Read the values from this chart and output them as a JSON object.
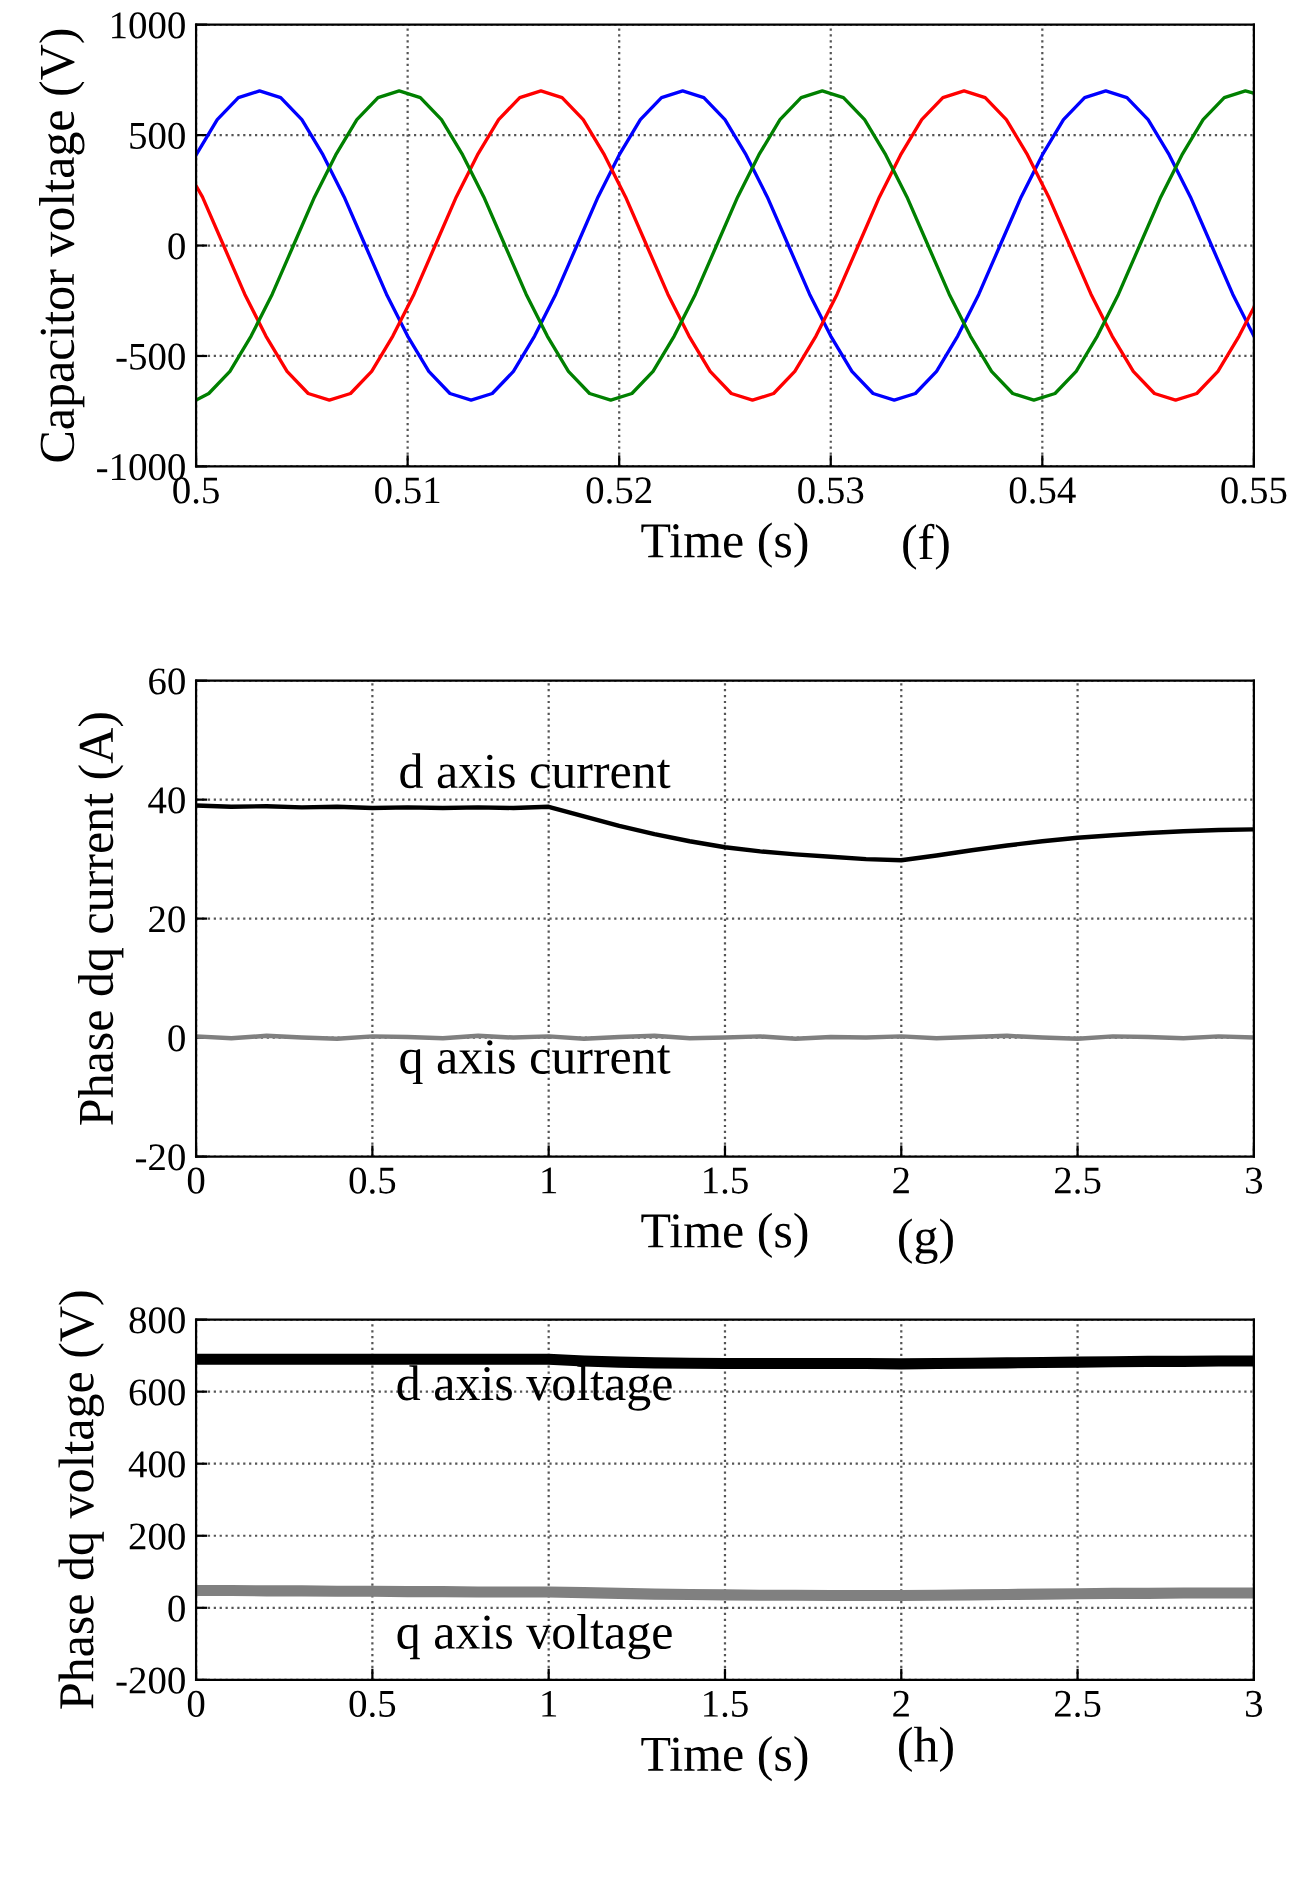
{
  "chart_data": [
    {
      "type": "line",
      "xlabel": "Time (s)",
      "ylabel": "Capacitor voltage (V)",
      "annotations": [
        "(f)"
      ],
      "xlim": [
        0.5,
        0.55
      ],
      "ylim": [
        -1000,
        1000
      ],
      "xticks": [
        0.5,
        0.51,
        0.52,
        0.53,
        0.54,
        0.55
      ],
      "yticks": [
        -1000,
        -500,
        0,
        500,
        1000
      ],
      "grid": true,
      "legend": false,
      "series": [
        {
          "color": "#0000ff",
          "x": [
            0.5,
            0.501,
            0.502,
            0.503,
            0.504,
            0.505,
            0.506,
            0.507,
            0.508,
            0.509,
            0.51,
            0.511,
            0.512,
            0.513,
            0.514,
            0.515,
            0.516,
            0.517,
            0.518,
            0.519,
            0.52,
            0.521,
            0.522,
            0.523,
            0.524,
            0.525,
            0.526,
            0.527,
            0.528,
            0.529,
            0.53,
            0.531,
            0.532,
            0.533,
            0.534,
            0.535,
            0.536,
            0.537,
            0.538,
            0.539,
            0.54,
            0.541,
            0.542,
            0.543,
            0.544,
            0.545,
            0.546,
            0.547,
            0.548,
            0.549,
            0.55
          ],
          "values": [
            410,
            570,
            670,
            700,
            670,
            570,
            410,
            220,
            0,
            -220,
            -410,
            -570,
            -670,
            -700,
            -670,
            -570,
            -410,
            -220,
            0,
            220,
            410,
            570,
            670,
            700,
            670,
            570,
            410,
            220,
            0,
            -220,
            -410,
            -570,
            -670,
            -700,
            -670,
            -570,
            -410,
            -220,
            0,
            220,
            410,
            570,
            670,
            700,
            670,
            570,
            410,
            220,
            0,
            -220,
            -410
          ]
        },
        {
          "color": "#ff0000",
          "x": [
            0.5,
            0.5003,
            0.5013,
            0.5023,
            0.5033,
            0.5043,
            0.5053,
            0.5063,
            0.5073,
            0.5083,
            0.5093,
            0.5103,
            0.5113,
            0.5123,
            0.5133,
            0.5143,
            0.5153,
            0.5163,
            0.5173,
            0.5183,
            0.5193,
            0.5203,
            0.5213,
            0.5223,
            0.5233,
            0.5243,
            0.5253,
            0.5263,
            0.5273,
            0.5283,
            0.5293,
            0.5303,
            0.5313,
            0.5323,
            0.5333,
            0.5343,
            0.5353,
            0.5363,
            0.5373,
            0.5383,
            0.5393,
            0.5403,
            0.5413,
            0.5423,
            0.5433,
            0.5443,
            0.5453,
            0.5463,
            0.5473,
            0.5483,
            0.5493,
            0.55
          ],
          "values": [
            270,
            220,
            0,
            -220,
            -410,
            -570,
            -670,
            -700,
            -670,
            -570,
            -410,
            -220,
            0,
            220,
            410,
            570,
            670,
            700,
            670,
            570,
            410,
            220,
            0,
            -220,
            -410,
            -570,
            -670,
            -700,
            -670,
            -570,
            -410,
            -220,
            0,
            220,
            410,
            570,
            670,
            700,
            670,
            570,
            410,
            220,
            0,
            -220,
            -410,
            -570,
            -670,
            -700,
            -670,
            -570,
            -410,
            -280
          ]
        },
        {
          "color": "#008000",
          "x": [
            0.5,
            0.5006,
            0.5016,
            0.5026,
            0.5036,
            0.5046,
            0.5056,
            0.5066,
            0.5076,
            0.5086,
            0.5096,
            0.5106,
            0.5116,
            0.5126,
            0.5136,
            0.5146,
            0.5156,
            0.5166,
            0.5176,
            0.5186,
            0.5196,
            0.5206,
            0.5216,
            0.5226,
            0.5236,
            0.5246,
            0.5256,
            0.5266,
            0.5276,
            0.5286,
            0.5296,
            0.5306,
            0.5316,
            0.5326,
            0.5336,
            0.5346,
            0.5356,
            0.5366,
            0.5376,
            0.5386,
            0.5396,
            0.5406,
            0.5416,
            0.5426,
            0.5436,
            0.5446,
            0.5456,
            0.5466,
            0.5476,
            0.5486,
            0.5496,
            0.55
          ],
          "values": [
            -700,
            -670,
            -570,
            -410,
            -220,
            0,
            220,
            410,
            570,
            670,
            700,
            670,
            570,
            410,
            220,
            0,
            -220,
            -410,
            -570,
            -670,
            -700,
            -670,
            -570,
            -410,
            -220,
            0,
            220,
            410,
            570,
            670,
            700,
            670,
            570,
            410,
            220,
            0,
            -220,
            -410,
            -570,
            -670,
            -700,
            -670,
            -570,
            -410,
            -220,
            0,
            220,
            410,
            570,
            670,
            700,
            690
          ]
        }
      ]
    },
    {
      "type": "line",
      "xlabel": "Time (s)",
      "ylabel": "Phase dq current (A)",
      "annotations": [
        "(g)",
        "d axis current",
        "q axis current"
      ],
      "xlim": [
        0,
        3
      ],
      "ylim": [
        -20,
        60
      ],
      "xticks": [
        0,
        0.5,
        1,
        1.5,
        2,
        2.5,
        3
      ],
      "yticks": [
        -20,
        0,
        20,
        40,
        60
      ],
      "grid": true,
      "legend": false,
      "series": [
        {
          "color": "#000000",
          "x": [
            0,
            0.1,
            0.2,
            0.3,
            0.4,
            0.5,
            0.6,
            0.7,
            0.8,
            0.9,
            1,
            1.1,
            1.2,
            1.3,
            1.4,
            1.5,
            1.6,
            1.7,
            1.8,
            1.9,
            2,
            2.1,
            2.2,
            2.3,
            2.4,
            2.5,
            2.6,
            2.7,
            2.8,
            2.9,
            3
          ],
          "values": [
            39.0,
            38.8,
            38.9,
            38.7,
            38.8,
            38.6,
            38.7,
            38.6,
            38.7,
            38.6,
            38.8,
            37.2,
            35.6,
            34.2,
            33.0,
            32.0,
            31.3,
            30.8,
            30.4,
            30.0,
            29.8,
            30.6,
            31.5,
            32.3,
            33.0,
            33.6,
            34.0,
            34.4,
            34.7,
            34.9,
            35.0
          ]
        },
        {
          "color": "#808080",
          "x": [
            0,
            0.1,
            0.2,
            0.3,
            0.4,
            0.5,
            0.6,
            0.7,
            0.8,
            0.9,
            1,
            1.1,
            1.2,
            1.3,
            1.4,
            1.5,
            1.6,
            1.7,
            1.8,
            1.9,
            2,
            2.1,
            2.2,
            2.3,
            2.4,
            2.5,
            2.6,
            2.7,
            2.8,
            2.9,
            3
          ],
          "values": [
            0.2,
            -0.1,
            0.3,
            0.0,
            -0.2,
            0.2,
            0.1,
            -0.1,
            0.3,
            0.0,
            0.2,
            -0.2,
            0.1,
            0.3,
            -0.1,
            0.0,
            0.2,
            -0.2,
            0.1,
            0.0,
            0.2,
            -0.1,
            0.1,
            0.3,
            0.0,
            -0.2,
            0.2,
            0.1,
            -0.1,
            0.2,
            0.0
          ]
        }
      ]
    },
    {
      "type": "line",
      "xlabel": "Time (s)",
      "ylabel": "Phase dq voltage (V)",
      "annotations": [
        "(h)",
        "d axis voltage",
        "q axis voltage"
      ],
      "xlim": [
        0,
        3
      ],
      "ylim": [
        -200,
        800
      ],
      "xticks": [
        0,
        0.5,
        1,
        1.5,
        2,
        2.5,
        3
      ],
      "yticks": [
        -200,
        0,
        200,
        400,
        600,
        800
      ],
      "grid": true,
      "legend": false,
      "series": [
        {
          "color": "#000000",
          "x": [
            0,
            0.1,
            0.2,
            0.3,
            0.4,
            0.5,
            0.6,
            0.7,
            0.8,
            0.9,
            1,
            1.1,
            1.2,
            1.3,
            1.4,
            1.5,
            1.6,
            1.7,
            1.8,
            1.9,
            2,
            2.1,
            2.2,
            2.3,
            2.4,
            2.5,
            2.6,
            2.7,
            2.8,
            2.9,
            3
          ],
          "values": [
            690,
            690,
            690,
            690,
            690,
            690,
            690,
            690,
            690,
            690,
            690,
            685,
            682,
            680,
            679,
            678,
            678,
            678,
            678,
            678,
            677,
            678,
            679,
            680,
            681,
            682,
            683,
            684,
            684,
            685,
            685
          ]
        },
        {
          "color": "#808080",
          "x": [
            0,
            0.1,
            0.2,
            0.3,
            0.4,
            0.5,
            0.6,
            0.7,
            0.8,
            0.9,
            1,
            1.1,
            1.2,
            1.3,
            1.4,
            1.5,
            1.6,
            1.7,
            1.8,
            1.9,
            2,
            2.1,
            2.2,
            2.3,
            2.4,
            2.5,
            2.6,
            2.7,
            2.8,
            2.9,
            3
          ],
          "values": [
            48,
            48,
            47,
            47,
            46,
            46,
            45,
            45,
            44,
            44,
            44,
            42,
            40,
            38,
            37,
            36,
            35,
            35,
            34,
            34,
            34,
            35,
            36,
            37,
            38,
            39,
            40,
            40,
            41,
            41,
            41
          ]
        }
      ]
    }
  ]
}
